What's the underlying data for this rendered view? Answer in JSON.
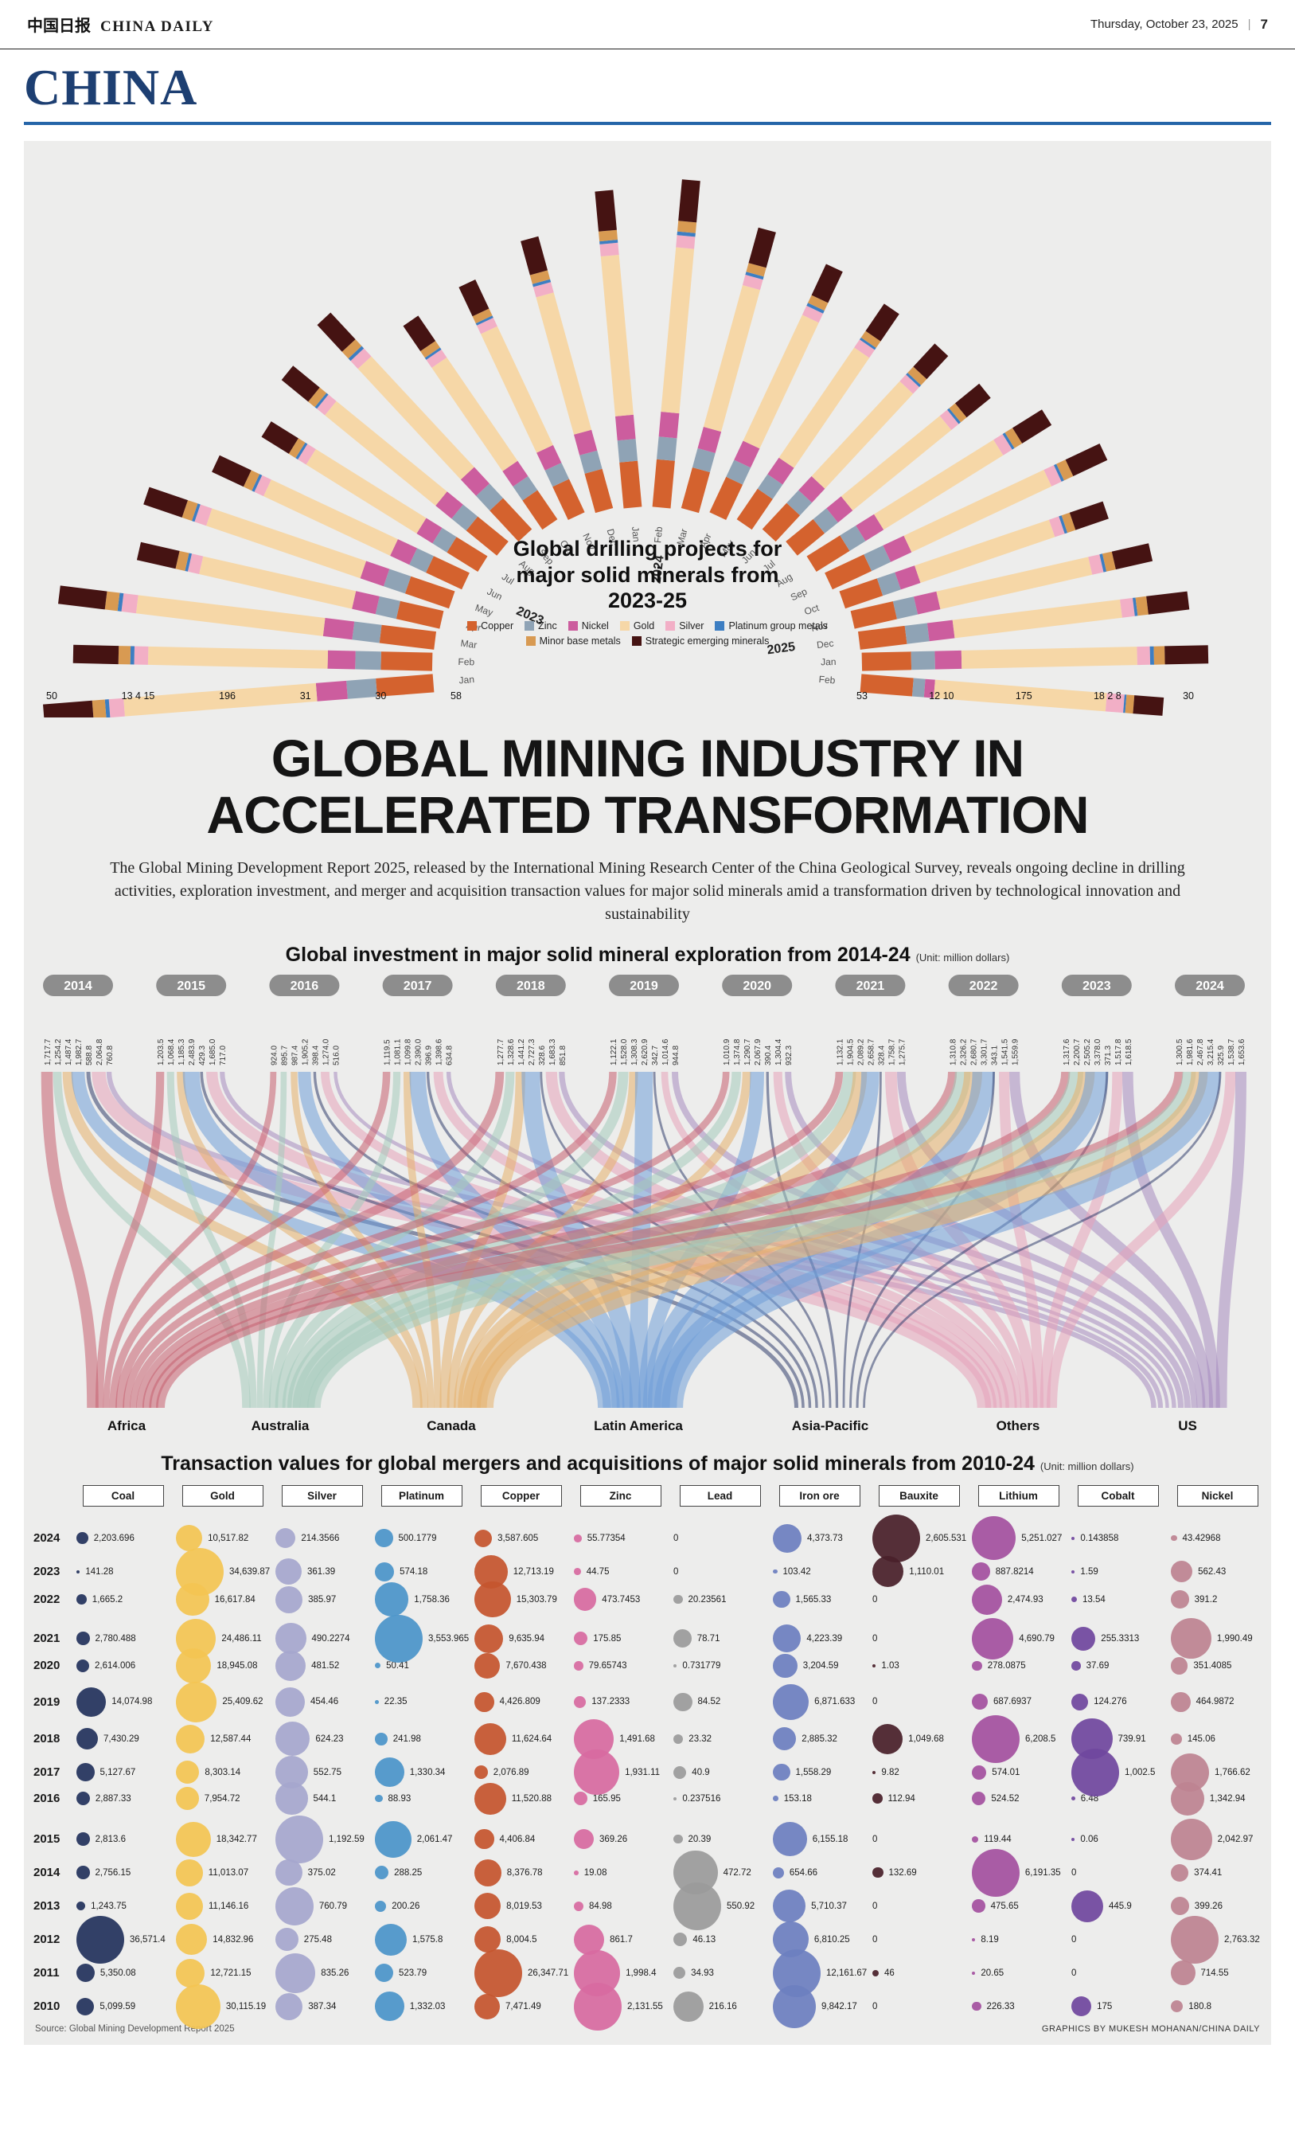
{
  "page": {
    "masthead": {
      "logo_cjk": "中国日报",
      "brand": "CHINA DAILY",
      "date": "Thursday, October 23, 2025",
      "sep": "|",
      "page_number": "7"
    },
    "section_title": "CHINA",
    "headline1": "GLOBAL MINING INDUSTRY IN",
    "headline2": "ACCELERATED TRANSFORMATION",
    "intro": "The Global Mining Development Report 2025, released by the International Mining Research Center of the China Geological Survey, reveals ongoing decline in drilling activities, exploration investment, and merger and acquisition transaction values for major solid minerals amid a transformation driven by technological innovation and sustainability",
    "source": "Source: Global Mining Development Report 2025",
    "credit": "GRAPHICS BY MUKESH MOHANAN/CHINA DAILY"
  },
  "chart_data": [
    {
      "type": "radial-stacked-bar",
      "title": "Global drilling projects for major solid minerals from 2023-25",
      "legend": [
        {
          "label": "Copper",
          "color": "#d4622e"
        },
        {
          "label": "Zinc",
          "color": "#8fa3b5"
        },
        {
          "label": "Nickel",
          "color": "#cc5d9e"
        },
        {
          "label": "Gold",
          "color": "#f6d7a7"
        },
        {
          "label": "Silver",
          "color": "#f2afc6"
        },
        {
          "label": "Platinum group metals",
          "color": "#3d7ec2"
        },
        {
          "label": "Minor base metals",
          "color": "#d89a52"
        },
        {
          "label": "Strategic emerging minerals",
          "color": "#451312"
        }
      ],
      "series_order": [
        "Copper",
        "Zinc",
        "Nickel",
        "Gold",
        "Silver",
        "Platinum group metals",
        "Minor base metals",
        "Strategic emerging minerals"
      ],
      "year_markers": [
        {
          "label": "2023",
          "angle_deg": 150
        },
        {
          "label": "2024",
          "angle_deg": 85
        },
        {
          "label": "2025",
          "angle_deg": 10
        }
      ],
      "bars": [
        {
          "year": "2023",
          "month": "Jan",
          "values": [
            58,
            30,
            31,
            196,
            15,
            4,
            13,
            50
          ]
        },
        {
          "year": "2023",
          "month": "Feb",
          "values": [
            52,
            26,
            28,
            182,
            14,
            4,
            12,
            46
          ]
        },
        {
          "year": "2023",
          "month": "Mar",
          "values": [
            56,
            28,
            30,
            192,
            15,
            4,
            13,
            48
          ]
        },
        {
          "year": "2023",
          "month": "Apr",
          "values": [
            46,
            22,
            25,
            162,
            12,
            3,
            10,
            41
          ]
        },
        {
          "year": "2023",
          "month": "May",
          "values": [
            49,
            24,
            26,
            172,
            13,
            3,
            11,
            43
          ]
        },
        {
          "year": "2023",
          "month": "Jun",
          "values": [
            43,
            20,
            23,
            152,
            11,
            3,
            10,
            38
          ]
        },
        {
          "year": "2023",
          "month": "Jul",
          "values": [
            41,
            19,
            21,
            146,
            11,
            3,
            9,
            36
          ]
        },
        {
          "year": "2023",
          "month": "Aug",
          "values": [
            46,
            22,
            24,
            166,
            12,
            3,
            10,
            40
          ]
        },
        {
          "year": "2023",
          "month": "Sep",
          "values": [
            51,
            24,
            27,
            182,
            13,
            4,
            11,
            44
          ]
        },
        {
          "year": "2023",
          "month": "Oct",
          "values": [
            44,
            21,
            23,
            156,
            12,
            3,
            10,
            38
          ]
        },
        {
          "year": "2023",
          "month": "Nov",
          "values": [
            47,
            23,
            25,
            168,
            12,
            3,
            10,
            41
          ]
        },
        {
          "year": "2023",
          "month": "Dec",
          "values": [
            53,
            25,
            28,
            186,
            14,
            4,
            12,
            46
          ]
        },
        {
          "year": "2024",
          "month": "Jan",
          "values": [
            61,
            29,
            32,
            212,
            16,
            4,
            13,
            53
          ]
        },
        {
          "year": "2024",
          "month": "Feb",
          "values": [
            63,
            30,
            33,
            218,
            16,
            5,
            14,
            55
          ]
        },
        {
          "year": "2024",
          "month": "Mar",
          "values": [
            55,
            26,
            29,
            192,
            14,
            4,
            12,
            48
          ]
        },
        {
          "year": "2024",
          "month": "Apr",
          "values": [
            50,
            24,
            27,
            178,
            13,
            4,
            11,
            44
          ]
        },
        {
          "year": "2024",
          "month": "May",
          "values": [
            46,
            22,
            25,
            166,
            12,
            3,
            10,
            41
          ]
        },
        {
          "year": "2024",
          "month": "Jun",
          "values": [
            43,
            21,
            23,
            156,
            11,
            3,
            10,
            38
          ]
        },
        {
          "year": "2024",
          "month": "Jul",
          "values": [
            41,
            20,
            22,
            148,
            11,
            3,
            9,
            36
          ]
        },
        {
          "year": "2024",
          "month": "Aug",
          "values": [
            44,
            21,
            24,
            158,
            12,
            3,
            10,
            39
          ]
        },
        {
          "year": "2024",
          "month": "Sep",
          "values": [
            47,
            23,
            25,
            168,
            12,
            3,
            11,
            41
          ]
        },
        {
          "year": "2024",
          "month": "Oct",
          "values": [
            42,
            20,
            22,
            150,
            11,
            3,
            9,
            37
          ]
        },
        {
          "year": "2024",
          "month": "Nov",
          "values": [
            45,
            22,
            24,
            161,
            12,
            3,
            10,
            39
          ]
        },
        {
          "year": "2024",
          "month": "Dec",
          "values": [
            48,
            23,
            26,
            172,
            13,
            3,
            11,
            42
          ]
        },
        {
          "year": "2025",
          "month": "Jan",
          "values": [
            50,
            24,
            27,
            178,
            13,
            4,
            11,
            44
          ]
        },
        {
          "year": "2025",
          "month": "Feb",
          "values": [
            53,
            12,
            10,
            175,
            18,
            2,
            8,
            30
          ]
        }
      ],
      "edge_labels": {
        "left": [
          "50",
          "13 4 15",
          "196",
          "31",
          "30",
          "58"
        ],
        "right": [
          "53",
          "12 10",
          "175",
          "18 2 8",
          "30"
        ]
      }
    },
    {
      "type": "flow",
      "title": "Global investment in major solid mineral exploration from 2014-24",
      "unit": "(Unit: million dollars)",
      "regions": [
        {
          "name": "Africa",
          "color": "#c75f6f"
        },
        {
          "name": "Australia",
          "color": "#a4cabc"
        },
        {
          "name": "Canada",
          "color": "#e6b06b"
        },
        {
          "name": "Latin America",
          "color": "#6f9ed8"
        },
        {
          "name": "Asia-Pacific",
          "color": "#323e6d"
        },
        {
          "name": "Others",
          "color": "#e6a3ba"
        },
        {
          "name": "US",
          "color": "#a58bc0"
        }
      ],
      "years": [
        {
          "label": "2014",
          "values": [
            "1,717.7",
            "1,254.2",
            "1,487.4",
            "1,982.7",
            "588.8",
            "2,064.8",
            "760.8"
          ]
        },
        {
          "label": "2015",
          "values": [
            "1,203.5",
            "1,068.4",
            "1,185.3",
            "2,483.9",
            "429.3",
            "1,685.0",
            "717.0"
          ]
        },
        {
          "label": "2016",
          "values": [
            "924.0",
            "895.7",
            "987.4",
            "1,905.2",
            "398.4",
            "1,274.0",
            "516.0"
          ]
        },
        {
          "label": "2017",
          "values": [
            "1,119.5",
            "1,081.1",
            "1,099.8",
            "2,390.0",
            "396.9",
            "1,398.6",
            "634.8"
          ]
        },
        {
          "label": "2018",
          "values": [
            "1,277.7",
            "1,328.6",
            "1,441.2",
            "2,727.3",
            "328.6",
            "1,683.3",
            "851.8"
          ]
        },
        {
          "label": "2019",
          "values": [
            "1,122.1",
            "1,528.0",
            "1,308.3",
            "2,620.9",
            "342.7",
            "1,014.6",
            "944.8"
          ]
        },
        {
          "label": "2020",
          "values": [
            "1,010.9",
            "1,374.8",
            "1,290.7",
            "2,067.9",
            "390.4",
            "1,304.4",
            "932.3"
          ]
        },
        {
          "label": "2021",
          "values": [
            "1,132.1",
            "1,904.5",
            "2,089.2",
            "2,658.7",
            "328.4",
            "1,758.7",
            "1,275.7"
          ]
        },
        {
          "label": "2022",
          "values": [
            "1,310.8",
            "2,326.2",
            "2,680.7",
            "3,301.7",
            "343.1",
            "1,541.5",
            "1,559.9"
          ]
        },
        {
          "label": "2023",
          "values": [
            "1,317.6",
            "2,200.7",
            "2,505.2",
            "3,378.0",
            "371.3",
            "1,517.8",
            "1,618.5"
          ]
        },
        {
          "label": "2024",
          "values": [
            "1,300.5",
            "1,981.6",
            "2,467.8",
            "3,215.4",
            "325.9",
            "1,538.7",
            "1,653.6"
          ]
        }
      ]
    },
    {
      "type": "bubble-table",
      "title": "Transaction values for global mergers and acquisitions of major solid minerals from 2010-24",
      "unit": "(Unit: million dollars)",
      "columns": [
        {
          "name": "Coal",
          "color": "#24335c"
        },
        {
          "name": "Gold",
          "color": "#f3c553"
        },
        {
          "name": "Silver",
          "color": "#a6a7ce"
        },
        {
          "name": "Platinum",
          "color": "#4b94c9"
        },
        {
          "name": "Copper",
          "color": "#c5552e"
        },
        {
          "name": "Zinc",
          "color": "#d76ba0"
        },
        {
          "name": "Lead",
          "color": "#9b9b9b"
        },
        {
          "name": "Iron ore",
          "color": "#6d7fc0"
        },
        {
          "name": "Bauxite",
          "color": "#49202a"
        },
        {
          "name": "Lithium",
          "color": "#a4519f"
        },
        {
          "name": "Cobalt",
          "color": "#70479e"
        },
        {
          "name": "Nickel",
          "color": "#bd8391"
        }
      ],
      "rows": [
        {
          "year": "2024",
          "values": [
            "2,203.696",
            "10,517.82",
            "214.3566",
            "500.1779",
            "3,587.605",
            "55.77354",
            "0",
            "4,373.73",
            "2,605.531",
            "5,251.027",
            "0.143858",
            "43.42968"
          ]
        },
        {
          "year": "2023",
          "values": [
            "141.28",
            "34,639.87",
            "361.39",
            "574.18",
            "12,713.19",
            "44.75",
            "0",
            "103.42",
            "1,110.01",
            "887.8214",
            "1.59",
            "562.43"
          ]
        },
        {
          "year": "2022",
          "values": [
            "1,665.2",
            "16,617.84",
            "385.97",
            "1,758.36",
            "15,303.79",
            "473.7453",
            "20.23561",
            "1,565.33",
            "0",
            "2,474.93",
            "13.54",
            "391.2"
          ]
        },
        {
          "year": "2021",
          "values": [
            "2,780.488",
            "24,486.11",
            "490.2274",
            "3,553.965",
            "9,635.94",
            "175.85",
            "78.71",
            "4,223.39",
            "0",
            "4,690.79",
            "255.3313",
            "1,990.49"
          ]
        },
        {
          "year": "2020",
          "values": [
            "2,614.006",
            "18,945.08",
            "481.52",
            "50.41",
            "7,670.438",
            "79.65743",
            "0.731779",
            "3,204.59",
            "1.03",
            "278.0875",
            "37.69",
            "351.4085"
          ]
        },
        {
          "year": "2019",
          "values": [
            "14,074.98",
            "25,409.62",
            "454.46",
            "22.35",
            "4,426.809",
            "137.2333",
            "84.52",
            "6,871.633",
            "0",
            "687.6937",
            "124.276",
            "464.9872"
          ]
        },
        {
          "year": "2018",
          "values": [
            "7,430.29",
            "12,587.44",
            "624.23",
            "241.98",
            "11,624.64",
            "1,491.68",
            "23.32",
            "2,885.32",
            "1,049.68",
            "6,208.5",
            "739.91",
            "145.06"
          ]
        },
        {
          "year": "2017",
          "values": [
            "5,127.67",
            "8,303.14",
            "552.75",
            "1,330.34",
            "2,076.89",
            "1,931.11",
            "40.9",
            "1,558.29",
            "9.82",
            "574.01",
            "1,002.5",
            "1,766.62"
          ]
        },
        {
          "year": "2016",
          "values": [
            "2,887.33",
            "7,954.72",
            "544.1",
            "88.93",
            "11,520.88",
            "165.95",
            "0.237516",
            "153.18",
            "112.94",
            "524.52",
            "6.48",
            "1,342.94"
          ]
        },
        {
          "year": "2015",
          "values": [
            "2,813.6",
            "18,342.77",
            "1,192.59",
            "2,061.47",
            "4,406.84",
            "369.26",
            "20.39",
            "6,155.18",
            "0",
            "119.44",
            "0.06",
            "2,042.97"
          ]
        },
        {
          "year": "2014",
          "values": [
            "2,756.15",
            "11,013.07",
            "375.02",
            "288.25",
            "8,376.78",
            "19.08",
            "472.72",
            "654.66",
            "132.69",
            "6,191.35",
            "0",
            "374.41"
          ]
        },
        {
          "year": "2013",
          "values": [
            "1,243.75",
            "11,146.16",
            "760.79",
            "200.26",
            "8,019.53",
            "84.98",
            "550.92",
            "5,710.37",
            "0",
            "475.65",
            "445.9",
            "399.26"
          ]
        },
        {
          "year": "2012",
          "values": [
            "36,571.4",
            "14,832.96",
            "275.48",
            "1,575.8",
            "8,004.5",
            "861.7",
            "46.13",
            "6,810.25",
            "0",
            "8.19",
            "0",
            "2,763.32"
          ]
        },
        {
          "year": "2011",
          "values": [
            "5,350.08",
            "12,721.15",
            "835.26",
            "523.79",
            "26,347.71",
            "1,998.4",
            "34.93",
            "12,161.67",
            "46",
            "20.65",
            "0",
            "714.55"
          ]
        },
        {
          "year": "2010",
          "values": [
            "5,099.59",
            "30,115.19",
            "387.34",
            "1,332.03",
            "7,471.49",
            "2,131.55",
            "216.16",
            "9,842.17",
            "0",
            "226.33",
            "175",
            "180.8"
          ]
        }
      ]
    }
  ]
}
